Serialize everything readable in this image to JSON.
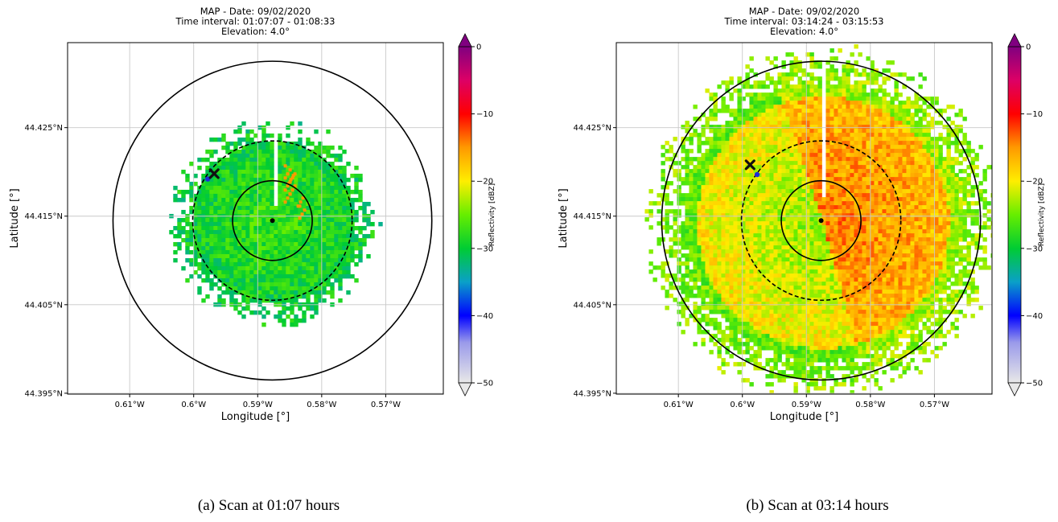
{
  "chart_data": [
    {
      "type": "heatmap",
      "subtype": "radar-reflectivity-map",
      "title": [
        "MAP - Date: 09/02/2020",
        "Time interval: 01:07:07 - 01:08:33",
        "Elevation: 4.0°"
      ],
      "xlabel": "Longitude [°]",
      "ylabel": "Latitude [°]",
      "xticks": [
        -0.61,
        -0.6,
        -0.59,
        -0.58,
        -0.57
      ],
      "xtick_labels": [
        "0.61°W",
        "0.6°W",
        "0.59°W",
        "0.58°W",
        "0.57°W"
      ],
      "yticks": [
        44.395,
        44.405,
        44.415,
        44.425
      ],
      "ytick_labels": [
        "44.395°N",
        "44.405°N",
        "44.415°N",
        "44.425°N"
      ],
      "xlim": [
        -0.6197,
        -0.561
      ],
      "ylim": [
        44.3949,
        44.4346
      ],
      "grid": true,
      "radar_center": [
        -0.5877,
        44.4145
      ],
      "range_rings": [
        {
          "style": "solid",
          "radius_deg_lat": 0.0045
        },
        {
          "style": "dashed",
          "radius_deg_lat": 0.009
        },
        {
          "style": "solid",
          "radius_deg_lat": 0.018
        }
      ],
      "echo_extent_deg_lat": 0.0112,
      "echo_dominant_dbz": -27,
      "marker_x": [
        -0.5968,
        44.4198
      ],
      "marker_blue": [
        -0.5978,
        44.4192
      ],
      "colorbar": {
        "label": "Reflectivity [dBZ]",
        "range": [
          -50,
          0
        ],
        "ticks": [
          -50,
          -40,
          -30,
          -20,
          -10,
          0
        ],
        "extend": "both"
      }
    },
    {
      "type": "heatmap",
      "subtype": "radar-reflectivity-map",
      "title": [
        "MAP - Date: 09/02/2020",
        "Time interval: 03:14:24 - 03:15:53",
        "Elevation: 4.0°"
      ],
      "xlabel": "Longitude [°]",
      "ylabel": "Latitude [°]",
      "xticks": [
        -0.61,
        -0.6,
        -0.59,
        -0.58,
        -0.57
      ],
      "xtick_labels": [
        "0.61°W",
        "0.6°W",
        "0.59°W",
        "0.58°W",
        "0.57°W"
      ],
      "yticks": [
        44.395,
        44.405,
        44.415,
        44.425
      ],
      "ytick_labels": [
        "44.395°N",
        "44.405°N",
        "44.415°N",
        "44.425°N"
      ],
      "xlim": [
        -0.6197,
        -0.561
      ],
      "ylim": [
        44.3949,
        44.4346
      ],
      "grid": true,
      "radar_center": [
        -0.5877,
        44.4145
      ],
      "range_rings": [
        {
          "style": "solid",
          "radius_deg_lat": 0.0045
        },
        {
          "style": "dashed",
          "radius_deg_lat": 0.009
        },
        {
          "style": "solid",
          "radius_deg_lat": 0.018
        }
      ],
      "echo_extent_deg_lat": 0.019,
      "echo_dominant_dbz": -18,
      "marker_x": [
        -0.5988,
        44.4208
      ],
      "marker_blue": [
        -0.5977,
        44.4197
      ],
      "colorbar": {
        "label": "Reflectivity [dBZ]",
        "range": [
          -50,
          0
        ],
        "ticks": [
          -50,
          -40,
          -30,
          -20,
          -10,
          0
        ],
        "extend": "both"
      }
    }
  ],
  "captions": {
    "a": "(a) Scan at 01:07 hours",
    "b": "(b) Scan at 03:14 hours"
  },
  "colors": {
    "ring": "#000000",
    "grid": "#c8c8c8",
    "marker_blue": "#1f2bd9"
  }
}
